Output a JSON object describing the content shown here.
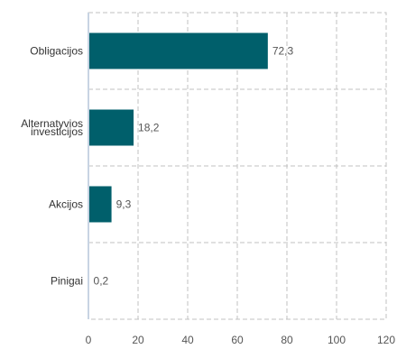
{
  "chart_data": {
    "type": "bar",
    "orientation": "horizontal",
    "categories": [
      [
        "Obligacijos"
      ],
      [
        "Alternatyvios",
        "investicijos"
      ],
      [
        "Akcijos"
      ],
      [
        "Pinigai"
      ]
    ],
    "values": [
      72.3,
      18.2,
      9.3,
      0.2
    ],
    "value_labels": [
      "72,3",
      "18,2",
      "9,3",
      "0,2"
    ],
    "xlim": [
      0,
      120
    ],
    "xticks": [
      0,
      20,
      40,
      60,
      80,
      100,
      120
    ],
    "grid": true,
    "bar_color": "#005f6b",
    "axis_color": "#c8d4e3",
    "grid_color": "#c0c0c0"
  }
}
